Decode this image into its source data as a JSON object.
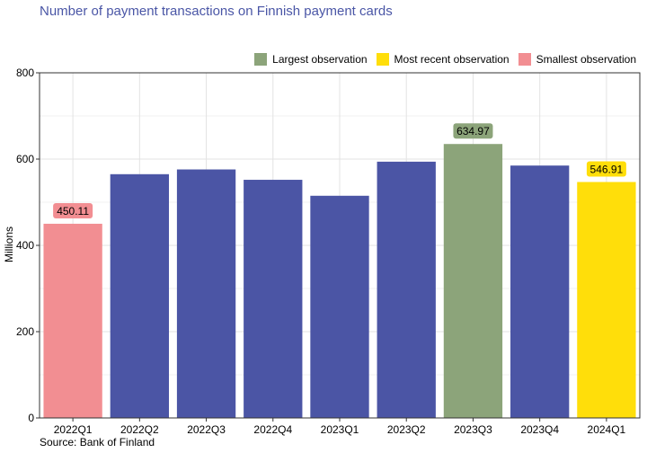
{
  "chart_data": {
    "type": "bar",
    "title": "Number of payment transactions on Finnish payment cards",
    "ylabel": "Millions",
    "xlabel": "",
    "source": "Source: Bank of Finland",
    "categories": [
      "2022Q1",
      "2022Q2",
      "2022Q3",
      "2022Q4",
      "2023Q1",
      "2023Q2",
      "2023Q3",
      "2023Q4",
      "2024Q1"
    ],
    "values": [
      450.11,
      565,
      576,
      552,
      515,
      594,
      634.97,
      585,
      546.91
    ],
    "ylim": [
      0,
      800
    ],
    "yticks": [
      0,
      200,
      400,
      600,
      800
    ],
    "grid": true,
    "legend_position": "top-right",
    "legend": [
      {
        "label": "Largest observation",
        "color": "#8ca47a"
      },
      {
        "label": "Most recent observation",
        "color": "#ffde0a"
      },
      {
        "label": "Smallest observation",
        "color": "#f28e92"
      }
    ],
    "colors": {
      "default": "#4b55a5",
      "largest": "#8ca47a",
      "recent": "#ffde0a",
      "smallest": "#f28e92"
    },
    "highlights": [
      {
        "category": "2022Q1",
        "kind": "smallest",
        "label": "450.11"
      },
      {
        "category": "2023Q3",
        "kind": "largest",
        "label": "634.97"
      },
      {
        "category": "2024Q1",
        "kind": "recent",
        "label": "546.91"
      }
    ]
  }
}
